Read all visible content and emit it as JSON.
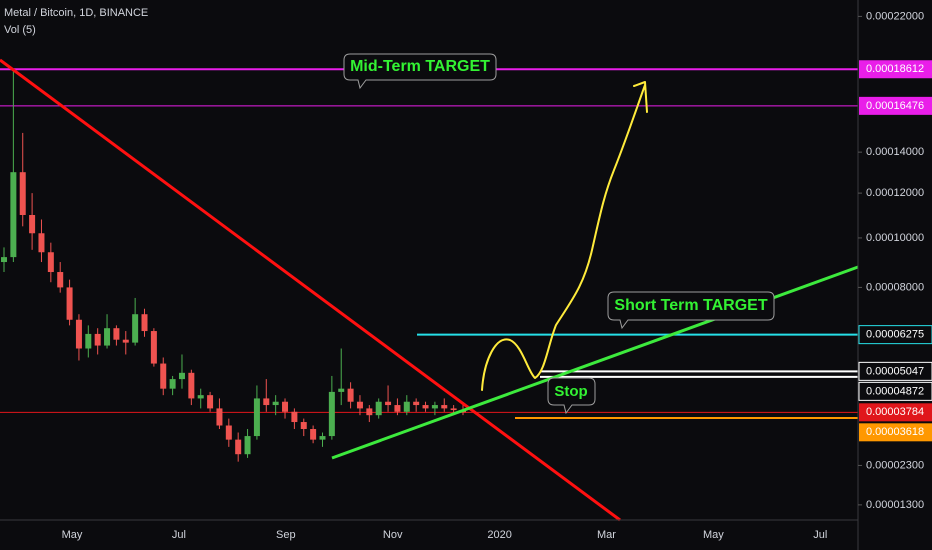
{
  "chart_data": {
    "type": "candlestick",
    "title": "Metal / Bitcoin, 1D, BINANCE",
    "subtitle": "Vol (5)",
    "up_color": "#4caf50",
    "down_color": "#ef5350",
    "open": [
      9e-05,
      9.2e-05,
      0.00013,
      0.00011,
      0.000102,
      9.4e-05,
      8.6e-05,
      8e-05,
      6.8e-05,
      5.8e-05,
      6.3e-05,
      5.9e-05,
      6.5e-05,
      6.1e-05,
      6e-05,
      7e-05,
      6.4e-05,
      5.3e-05,
      4.5e-05,
      4.8e-05,
      5e-05,
      4.2e-05,
      4.3e-05,
      3.9e-05,
      3.4e-05,
      3e-05,
      2.6e-05,
      3.1e-05,
      4.2e-05,
      4e-05,
      4.1e-05,
      3.8e-05,
      3.5e-05,
      3.3e-05,
      3e-05,
      3.1e-05,
      4.4e-05,
      4.5e-05,
      4.1e-05,
      3.9e-05,
      3.7e-05,
      4.1e-05,
      4e-05,
      3.8e-05,
      4.1e-05,
      4e-05,
      3.9e-05,
      4e-05,
      3.9e-05,
      3.85e-05
    ],
    "high": [
      9.6e-05,
      0.000186,
      0.00015,
      0.00012,
      0.000108,
      9.8e-05,
      9e-05,
      8.3e-05,
      7e-05,
      6.6e-05,
      6.5e-05,
      7e-05,
      6.6e-05,
      6.4e-05,
      7.6e-05,
      7.2e-05,
      6.5e-05,
      5.5e-05,
      4.9e-05,
      5.6e-05,
      5.1e-05,
      4.5e-05,
      4.4e-05,
      4.2e-05,
      3.6e-05,
      3.2e-05,
      3.3e-05,
      4.6e-05,
      4.8e-05,
      4.3e-05,
      4.2e-05,
      3.9e-05,
      3.6e-05,
      3.4e-05,
      3.2e-05,
      4.9e-05,
      5.8e-05,
      4.7e-05,
      4.3e-05,
      4e-05,
      4.2e-05,
      4.6e-05,
      4.2e-05,
      4.3e-05,
      4.2e-05,
      4.1e-05,
      4.1e-05,
      4.2e-05,
      4e-05,
      4e-05
    ],
    "low": [
      8.6e-05,
      9e-05,
      0.000105,
      9.5e-05,
      9e-05,
      8.2e-05,
      7.8e-05,
      6.6e-05,
      5.4e-05,
      5.5e-05,
      5.6e-05,
      5.8e-05,
      5.9e-05,
      5.6e-05,
      5.9e-05,
      6.2e-05,
      5.2e-05,
      4.3e-05,
      4.3e-05,
      4.5e-05,
      4e-05,
      3.9e-05,
      3.8e-05,
      3.3e-05,
      2.8e-05,
      2.4e-05,
      2.5e-05,
      3e-05,
      3.8e-05,
      3.7e-05,
      3.6e-05,
      3.3e-05,
      3.1e-05,
      2.9e-05,
      2.8e-05,
      3e-05,
      4e-05,
      3.9e-05,
      3.7e-05,
      3.5e-05,
      3.6e-05,
      3.8e-05,
      3.7e-05,
      3.7e-05,
      3.8e-05,
      3.8e-05,
      3.7e-05,
      3.8e-05,
      3.7e-05,
      3.7e-05
    ],
    "close": [
      9.2e-05,
      0.00013,
      0.00011,
      0.000102,
      9.4e-05,
      8.6e-05,
      8e-05,
      6.8e-05,
      5.8e-05,
      6.3e-05,
      5.9e-05,
      6.5e-05,
      6.1e-05,
      6e-05,
      7e-05,
      6.4e-05,
      5.3e-05,
      4.5e-05,
      4.8e-05,
      5e-05,
      4.2e-05,
      4.3e-05,
      3.9e-05,
      3.4e-05,
      3e-05,
      2.6e-05,
      3.1e-05,
      4.2e-05,
      4e-05,
      4.1e-05,
      3.8e-05,
      3.5e-05,
      3.3e-05,
      3e-05,
      3.1e-05,
      4.4e-05,
      4.5e-05,
      4.1e-05,
      3.9e-05,
      3.7e-05,
      4.1e-05,
      4e-05,
      3.8e-05,
      4.1e-05,
      4e-05,
      3.9e-05,
      4e-05,
      3.9e-05,
      3.85e-05,
      3.784e-05
    ],
    "x_axis_labels": [
      "May",
      "Jul",
      "Sep",
      "Nov",
      "2020",
      "Mar",
      "May",
      "Jul"
    ],
    "yticks": [
      {
        "value": 0.00022,
        "label": "0.00022000"
      },
      {
        "value": 0.00014,
        "label": "0.00014000"
      },
      {
        "value": 0.00012,
        "label": "0.00012000"
      },
      {
        "value": 0.0001,
        "label": "0.00010000"
      },
      {
        "value": 8e-05,
        "label": "0.00008000"
      },
      {
        "value": 2.3e-05,
        "label": "0.00002300"
      },
      {
        "value": 1.3e-05,
        "label": "0.00001300"
      }
    ],
    "levels": [
      {
        "value": 0.00018612,
        "label": "0.00018612",
        "color": "#e91ee9"
      },
      {
        "value": 0.00016476,
        "label": "0.00016476",
        "color": "#e91ee9"
      },
      {
        "value": 6.275e-05,
        "label": "0.00006275",
        "color": "#26e0e8"
      },
      {
        "value": 5.047e-05,
        "label": "0.00005047",
        "color": "#ffffff"
      },
      {
        "value": 4.872e-05,
        "label": "0.00004872",
        "color": "#ffffff"
      },
      {
        "value": 3.784e-05,
        "label": "0.00003784",
        "color": "#e0161b"
      },
      {
        "value": 3.618e-05,
        "label": "0.00003618",
        "color": "#ff9800"
      }
    ],
    "annotations": [
      "Mid-Term TARGET",
      "Short Term TARGET",
      "Stop"
    ]
  }
}
